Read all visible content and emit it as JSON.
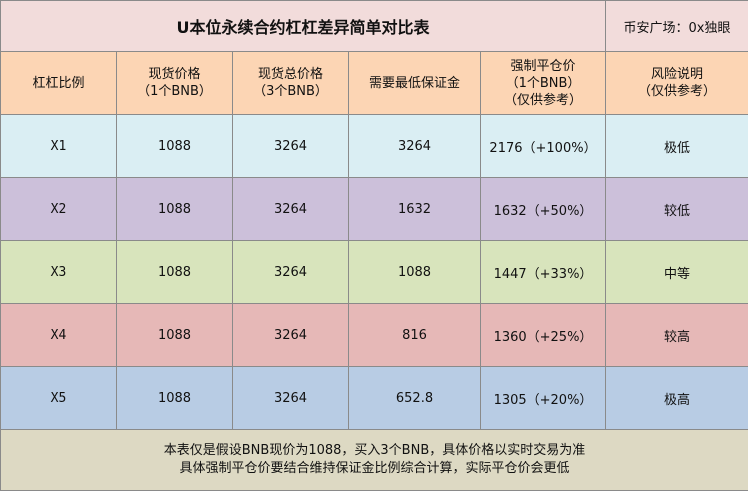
{
  "title": "U本位永续合约杠杠差异简单对比表",
  "tag": "币安广场：0x独眼",
  "headers": [
    {
      "line1": "杠杠比例",
      "line2": ""
    },
    {
      "line1": "现货价格",
      "line2": "（1个BNB）"
    },
    {
      "line1": "现货总价格",
      "line2": "（3个BNB）"
    },
    {
      "line1": "需要最低保证金",
      "line2": ""
    },
    {
      "line1": "强制平仓价",
      "line2": "（1个BNB）",
      "line3": "（仅供参考）"
    },
    {
      "line1": "风险说明",
      "line2": "（仅供参考）"
    }
  ],
  "rows": [
    {
      "lev": "X1",
      "spot": "1088",
      "total": "3264",
      "margin": "3264",
      "liq": "2176（+100%）",
      "risk": "极低"
    },
    {
      "lev": "X2",
      "spot": "1088",
      "total": "3264",
      "margin": "1632",
      "liq": "1632（+50%）",
      "risk": "较低"
    },
    {
      "lev": "X3",
      "spot": "1088",
      "total": "3264",
      "margin": "1088",
      "liq": "1447（+33%）",
      "risk": "中等"
    },
    {
      "lev": "X4",
      "spot": "1088",
      "total": "3264",
      "margin": "816",
      "liq": "1360（+25%）",
      "risk": "较高"
    },
    {
      "lev": "X5",
      "spot": "1088",
      "total": "3264",
      "margin": "652.8",
      "liq": "1305（+20%）",
      "risk": "极高"
    }
  ],
  "footer": {
    "line1": "本表仅是假设BNB现价为1088，买入3个BNB，具体价格以实时交易为准",
    "line2": "具体强制平仓价要结合维持保证金比例综合计算，实际平仓价会更低"
  }
}
